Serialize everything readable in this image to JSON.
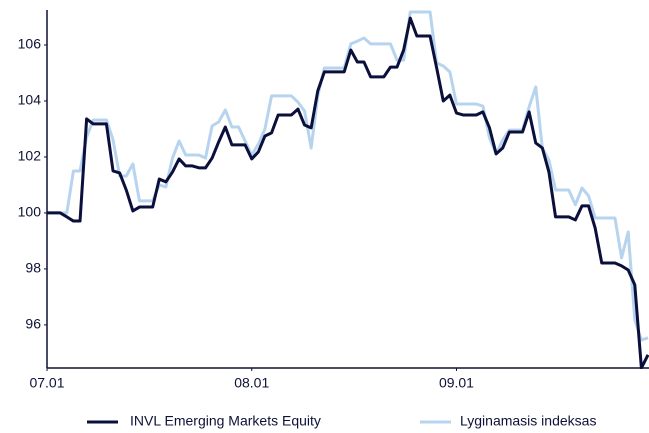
{
  "chart_data": {
    "type": "line",
    "x": [
      0,
      1,
      2,
      3,
      4,
      5,
      6,
      7,
      8,
      9,
      10,
      11,
      12,
      13,
      14,
      15,
      16,
      17,
      18,
      19,
      20,
      21,
      22,
      23,
      24,
      25,
      26,
      27,
      28,
      29,
      30,
      31,
      32,
      33,
      34,
      35,
      36,
      37,
      38,
      39,
      40,
      41,
      42,
      43,
      44,
      45,
      46,
      47,
      48,
      49,
      50,
      51,
      52,
      53,
      54,
      55,
      56,
      57,
      58,
      59,
      60,
      61,
      62,
      63,
      64,
      65,
      66,
      67,
      68,
      69,
      70,
      71,
      72,
      73,
      74,
      75,
      76,
      77,
      78,
      79,
      80,
      81,
      82,
      83,
      84,
      85,
      86,
      87,
      88,
      89,
      90,
      91
    ],
    "series": [
      {
        "name": "INVL Emerging Markets Equity",
        "color": "#0b0f3b",
        "values": [
          100,
          100,
          100,
          99.86,
          99.71,
          99.71,
          103.36,
          103.18,
          103.18,
          103.18,
          101.5,
          101.43,
          100.82,
          100.07,
          100.21,
          100.21,
          100.21,
          101.21,
          101.11,
          101.46,
          101.93,
          101.68,
          101.68,
          101.61,
          101.61,
          101.96,
          102.54,
          103.07,
          102.43,
          102.43,
          102.43,
          101.93,
          102.18,
          102.75,
          102.86,
          103.5,
          103.5,
          103.5,
          103.71,
          103.14,
          103.04,
          104.36,
          105.04,
          105.04,
          105.04,
          105.04,
          105.82,
          105.39,
          105.39,
          104.86,
          104.86,
          104.86,
          105.21,
          105.21,
          105.82,
          106.96,
          106.32,
          106.32,
          106.32,
          105.18,
          104,
          104.21,
          103.57,
          103.5,
          103.5,
          103.5,
          103.61,
          103.04,
          102.11,
          102.32,
          102.89,
          102.89,
          102.89,
          103.61,
          102.5,
          102.32,
          101.46,
          99.86,
          99.86,
          99.86,
          99.75,
          100.25,
          100.25,
          99.46,
          98.21,
          98.21,
          98.21,
          98.11,
          97.96,
          97.43,
          94.46,
          94.93
        ]
      },
      {
        "name": "Lyginamasis indeksas",
        "color": "#b7d4ef",
        "values": [
          100,
          100,
          100,
          100,
          101.5,
          101.5,
          102.71,
          103.32,
          103.32,
          103.32,
          102.61,
          101.32,
          101.32,
          101.75,
          100.43,
          100.43,
          100.43,
          101,
          100.93,
          101.96,
          102.57,
          102.07,
          102.07,
          102.07,
          101.96,
          103.11,
          103.25,
          103.68,
          103.07,
          103.07,
          102.57,
          102.07,
          102.46,
          103,
          104.18,
          104.18,
          104.18,
          104.18,
          103.96,
          103.64,
          102.32,
          104.18,
          105.18,
          105.18,
          105.18,
          105.18,
          106.04,
          106.14,
          106.25,
          106.04,
          106.04,
          106.04,
          106.04,
          105.46,
          105.46,
          107.18,
          107.18,
          107.18,
          107.18,
          105.36,
          105.25,
          105.04,
          103.89,
          103.89,
          103.89,
          103.89,
          103.82,
          102.68,
          102.11,
          102.61,
          102.96,
          102.96,
          102.96,
          103.79,
          104.5,
          102.32,
          101.89,
          100.82,
          100.82,
          100.82,
          100.29,
          100.89,
          100.61,
          99.82,
          99.82,
          99.82,
          99.82,
          98.39,
          99.32,
          96.18,
          95.46,
          95.54
        ]
      }
    ],
    "xlim": [
      0,
      91
    ],
    "xticks": [
      {
        "value": 0,
        "label": "07.01"
      },
      {
        "value": 31,
        "label": "08.01"
      },
      {
        "value": 62,
        "label": "09.01"
      }
    ],
    "ylim": [
      94.46,
      107.25
    ],
    "yticks": [
      96,
      98,
      100,
      102,
      104,
      106
    ],
    "grid": false,
    "legend": "bottom"
  }
}
